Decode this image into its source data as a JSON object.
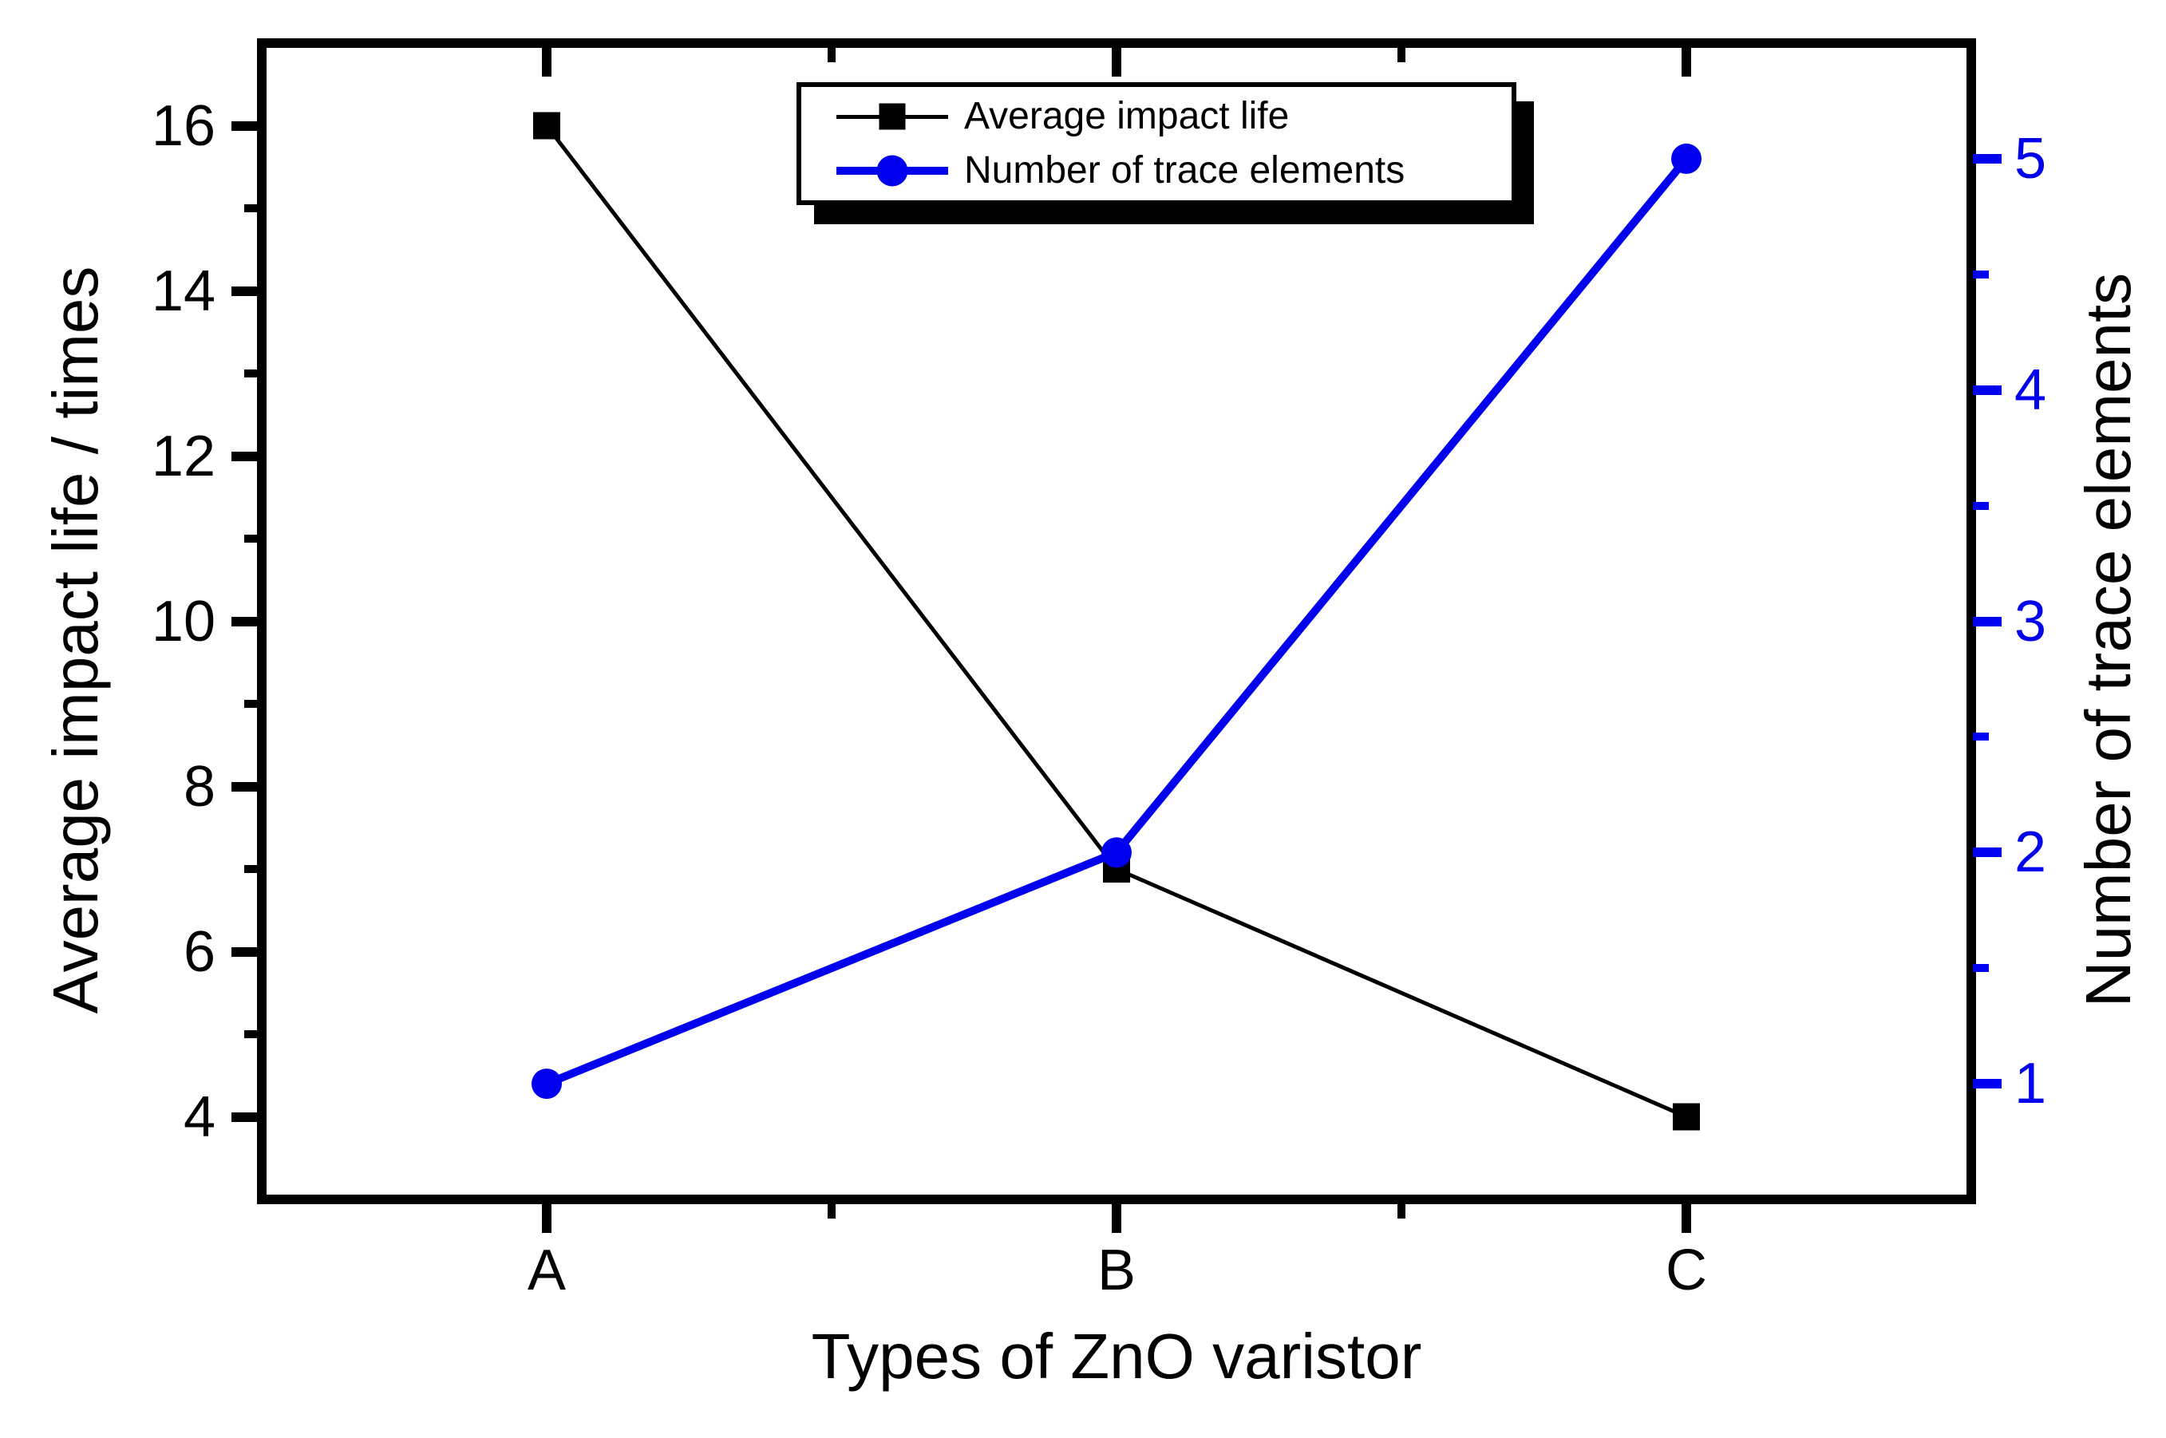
{
  "chart_data": {
    "type": "line",
    "categories": [
      "A",
      "B",
      "C"
    ],
    "series": [
      {
        "name": "Average impact life",
        "axis": "left",
        "marker": "square",
        "color": "#000000",
        "values": [
          16,
          7,
          4
        ]
      },
      {
        "name": "Number of trace elements",
        "axis": "right",
        "marker": "circle",
        "color": "#0000EE",
        "values": [
          1,
          2,
          5
        ]
      }
    ],
    "title": "",
    "xlabel": "Types of ZnO varistor",
    "ylabel_left": "Average impact life / times",
    "ylabel_right": "Number of trace elements",
    "axes": {
      "left": {
        "range": [
          3,
          17
        ],
        "major_ticks": [
          4,
          6,
          8,
          10,
          12,
          14,
          16
        ],
        "minor_ticks": [
          5,
          7,
          9,
          11,
          13,
          15
        ],
        "color": "#000000"
      },
      "right": {
        "range": [
          0.5,
          5.5
        ],
        "major_ticks": [
          1,
          2,
          3,
          4,
          5
        ],
        "minor_ticks": [
          1.5,
          2.5,
          3.5,
          4.5
        ],
        "color": "#0000EE"
      },
      "x": {
        "categories": [
          "A",
          "B",
          "C"
        ],
        "minor_ticks_between_categories": true
      }
    },
    "legend": {
      "position": "top-center",
      "entries": [
        "Average impact life",
        "Number of trace elements"
      ]
    },
    "grid": "off",
    "background": "#FFFFFF"
  }
}
